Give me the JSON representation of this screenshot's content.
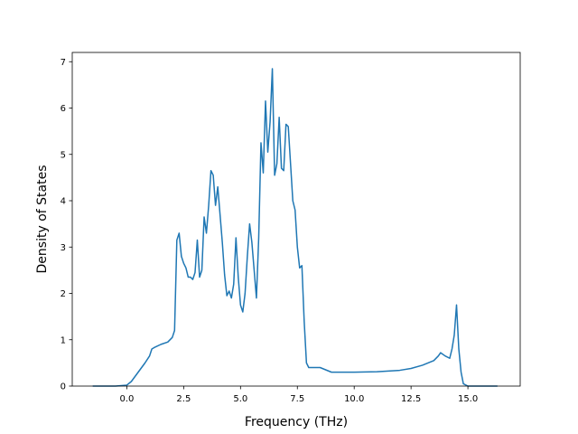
{
  "chart_data": {
    "type": "line",
    "title": "",
    "xlabel": "Frequency (THz)",
    "ylabel": "Density of States",
    "xlim": [
      -2.4,
      17.3
    ],
    "ylim": [
      0,
      7.2
    ],
    "grid": false,
    "xticks": [
      0.0,
      2.5,
      5.0,
      7.5,
      10.0,
      12.5,
      15.0
    ],
    "xtick_labels": [
      "0.0",
      "2.5",
      "5.0",
      "7.5",
      "10.0",
      "12.5",
      "15.0"
    ],
    "yticks": [
      0,
      1,
      2,
      3,
      4,
      5,
      6,
      7
    ],
    "ytick_labels": [
      "0",
      "1",
      "2",
      "3",
      "4",
      "5",
      "6",
      "7"
    ],
    "colors": {
      "line": "#1f77b4",
      "axes": "#000000",
      "background": "#ffffff"
    },
    "series": [
      {
        "x": [
          -1.5,
          -0.5,
          0.0,
          0.2,
          0.5,
          0.8,
          1.0,
          1.1,
          1.2,
          1.5,
          1.8,
          2.0,
          2.1,
          2.2,
          2.3,
          2.4,
          2.5,
          2.6,
          2.7,
          2.8,
          2.9,
          3.0,
          3.1,
          3.2,
          3.3,
          3.4,
          3.5,
          3.6,
          3.7,
          3.8,
          3.9,
          4.0,
          4.1,
          4.2,
          4.3,
          4.4,
          4.5,
          4.6,
          4.7,
          4.8,
          4.9,
          5.0,
          5.1,
          5.2,
          5.3,
          5.4,
          5.5,
          5.6,
          5.7,
          5.8,
          5.9,
          6.0,
          6.1,
          6.2,
          6.3,
          6.4,
          6.5,
          6.6,
          6.7,
          6.8,
          6.9,
          7.0,
          7.1,
          7.2,
          7.3,
          7.4,
          7.5,
          7.6,
          7.7,
          7.8,
          7.9,
          8.0,
          8.5,
          9.0,
          10.0,
          11.0,
          12.0,
          12.5,
          13.0,
          13.5,
          13.7,
          13.8,
          14.0,
          14.2,
          14.3,
          14.4,
          14.5,
          14.6,
          14.7,
          14.8,
          15.0,
          16.3
        ],
        "y": [
          0.0,
          0.0,
          0.02,
          0.1,
          0.3,
          0.5,
          0.65,
          0.8,
          0.83,
          0.9,
          0.95,
          1.05,
          1.2,
          3.15,
          3.3,
          2.8,
          2.65,
          2.55,
          2.35,
          2.35,
          2.3,
          2.45,
          3.15,
          2.35,
          2.5,
          3.65,
          3.3,
          3.9,
          4.65,
          4.55,
          3.9,
          4.3,
          3.7,
          3.1,
          2.4,
          1.95,
          2.05,
          1.9,
          2.2,
          3.2,
          2.35,
          1.75,
          1.6,
          2.0,
          2.8,
          3.5,
          3.1,
          2.5,
          1.9,
          3.2,
          5.25,
          4.6,
          6.15,
          5.05,
          5.7,
          6.85,
          4.55,
          4.8,
          5.8,
          4.7,
          4.65,
          5.65,
          5.6,
          4.8,
          4.0,
          3.8,
          3.0,
          2.55,
          2.6,
          1.4,
          0.5,
          0.4,
          0.4,
          0.3,
          0.3,
          0.31,
          0.34,
          0.38,
          0.45,
          0.55,
          0.65,
          0.72,
          0.65,
          0.6,
          0.8,
          1.1,
          1.75,
          0.8,
          0.3,
          0.05,
          0.0,
          0.0
        ]
      }
    ]
  }
}
